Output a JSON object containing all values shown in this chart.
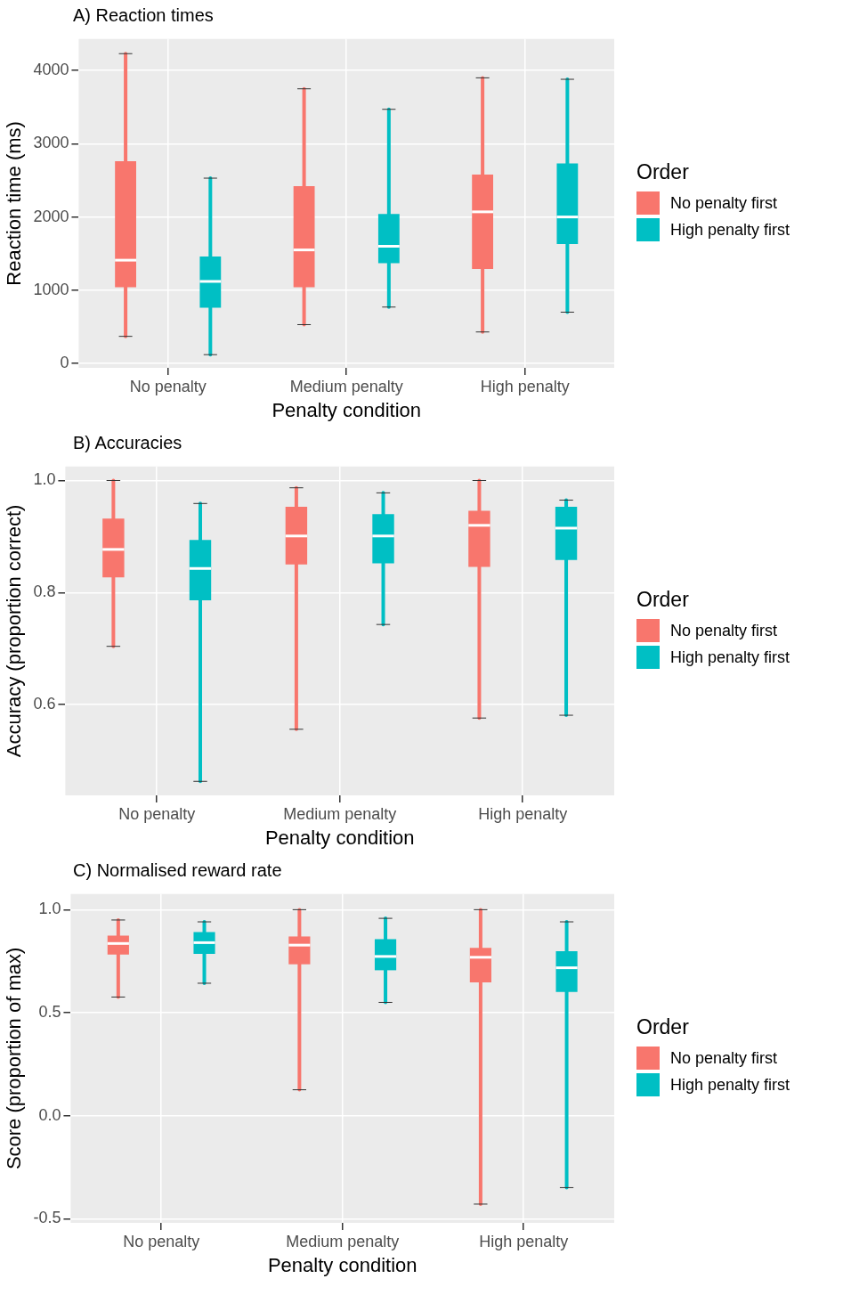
{
  "chart_data": [
    {
      "type": "box",
      "title": "A) Reaction times",
      "xlabel": "Penalty condition",
      "ylabel": "Reaction time (ms)",
      "legend_title": "Order",
      "legend": "right",
      "grid": true,
      "categories": [
        "No penalty",
        "Medium penalty",
        "High penalty"
      ],
      "ylim": [
        -60,
        4430
      ],
      "yticks": [
        0,
        1000,
        2000,
        3000,
        4000
      ],
      "series": [
        {
          "name": "No penalty first",
          "color": "#f8766d",
          "boxes": [
            {
              "low": 370,
              "q1": 1040,
              "median": 1410,
              "q3": 2760,
              "high": 4230
            },
            {
              "low": 530,
              "q1": 1040,
              "median": 1550,
              "q3": 2420,
              "high": 3750
            },
            {
              "low": 430,
              "q1": 1290,
              "median": 2070,
              "q3": 2580,
              "high": 3900
            }
          ]
        },
        {
          "name": "High penalty first",
          "color": "#00bfc4",
          "boxes": [
            {
              "low": 120,
              "q1": 760,
              "median": 1120,
              "q3": 1460,
              "high": 2530
            },
            {
              "low": 770,
              "q1": 1370,
              "median": 1600,
              "q3": 2040,
              "high": 3470
            },
            {
              "low": 700,
              "q1": 1630,
              "median": 2000,
              "q3": 2730,
              "high": 3880
            }
          ]
        }
      ]
    },
    {
      "type": "box",
      "title": "B) Accuracies",
      "xlabel": "Penalty condition",
      "ylabel": "Accuracy (proportion correct)",
      "legend_title": "Order",
      "legend": "right",
      "grid": true,
      "categories": [
        "No penalty",
        "Medium penalty",
        "High penalty"
      ],
      "ylim": [
        0.438,
        1.025
      ],
      "yticks": [
        {
          "value": 0.6,
          "label": "0.6"
        },
        {
          "value": 0.8,
          "label": "0.8"
        },
        {
          "value": 1,
          "label": "1.0"
        }
      ],
      "series": [
        {
          "name": "No penalty first",
          "color": "#f8766d",
          "boxes": [
            {
              "low": 0.704,
              "q1": 0.827,
              "median": 0.877,
              "q3": 0.932,
              "high": 1.0
            },
            {
              "low": 0.556,
              "q1": 0.85,
              "median": 0.901,
              "q3": 0.953,
              "high": 0.987
            },
            {
              "low": 0.576,
              "q1": 0.846,
              "median": 0.92,
              "q3": 0.946,
              "high": 1.0
            }
          ]
        },
        {
          "name": "High penalty first",
          "color": "#00bfc4",
          "boxes": [
            {
              "low": 0.463,
              "q1": 0.786,
              "median": 0.843,
              "q3": 0.894,
              "high": 0.959
            },
            {
              "low": 0.743,
              "q1": 0.852,
              "median": 0.901,
              "q3": 0.94,
              "high": 0.978
            },
            {
              "low": 0.581,
              "q1": 0.858,
              "median": 0.915,
              "q3": 0.953,
              "high": 0.965
            }
          ]
        }
      ]
    },
    {
      "type": "box",
      "title": "C) Normalised reward rate",
      "xlabel": "Penalty condition",
      "ylabel": "Score (proportion of max)",
      "legend_title": "Order",
      "legend": "right",
      "grid": true,
      "categories": [
        "No penalty",
        "Medium penalty",
        "High penalty"
      ],
      "ylim": [
        -0.52,
        1.076
      ],
      "yticks": [
        {
          "value": -0.5,
          "label": "-0.5"
        },
        {
          "value": 0,
          "label": "0.0"
        },
        {
          "value": 0.5,
          "label": "0.5"
        },
        {
          "value": 1,
          "label": "1.0"
        }
      ],
      "series": [
        {
          "name": "No penalty first",
          "color": "#f8766d",
          "boxes": [
            {
              "low": 0.576,
              "q1": 0.782,
              "median": 0.836,
              "q3": 0.874,
              "high": 0.95
            },
            {
              "low": 0.126,
              "q1": 0.735,
              "median": 0.828,
              "q3": 0.87,
              "high": 1.0
            },
            {
              "low": -0.429,
              "q1": 0.647,
              "median": 0.769,
              "q3": 0.815,
              "high": 1.0
            }
          ]
        },
        {
          "name": "High penalty first",
          "color": "#00bfc4",
          "boxes": [
            {
              "low": 0.643,
              "q1": 0.786,
              "median": 0.84,
              "q3": 0.891,
              "high": 0.941
            },
            {
              "low": 0.55,
              "q1": 0.706,
              "median": 0.773,
              "q3": 0.857,
              "high": 0.958
            },
            {
              "low": -0.349,
              "q1": 0.601,
              "median": 0.718,
              "q3": 0.798,
              "high": 0.941
            }
          ]
        }
      ]
    }
  ]
}
